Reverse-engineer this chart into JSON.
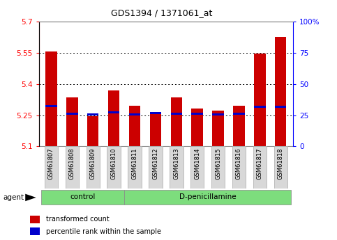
{
  "title": "GDS1394 / 1371061_at",
  "samples": [
    "GSM61807",
    "GSM61808",
    "GSM61809",
    "GSM61810",
    "GSM61811",
    "GSM61812",
    "GSM61813",
    "GSM61814",
    "GSM61815",
    "GSM61816",
    "GSM61817",
    "GSM61818"
  ],
  "transformed_counts": [
    5.555,
    5.335,
    5.245,
    5.37,
    5.295,
    5.262,
    5.335,
    5.282,
    5.272,
    5.295,
    5.545,
    5.625
  ],
  "percentile_ranks": [
    5.293,
    5.258,
    5.253,
    5.263,
    5.253,
    5.26,
    5.256,
    5.256,
    5.255,
    5.256,
    5.292,
    5.292
  ],
  "ylim_left": [
    5.1,
    5.7
  ],
  "ylim_right": [
    0,
    100
  ],
  "yticks_left": [
    5.1,
    5.25,
    5.4,
    5.55,
    5.7
  ],
  "yticks_right": [
    0,
    25,
    50,
    75,
    100
  ],
  "ytick_labels_left": [
    "5.1",
    "5.25",
    "5.4",
    "5.55",
    "5.7"
  ],
  "ytick_labels_right": [
    "0",
    "25",
    "50",
    "75",
    "100%"
  ],
  "bar_color": "#cc0000",
  "percentile_color": "#0000cc",
  "bar_width": 0.55,
  "control_label": "control",
  "dpen_label": "D-penicillamine",
  "agent_label": "agent",
  "legend_bar_label": "transformed count",
  "legend_pct_label": "percentile rank within the sample",
  "background_color": "#ffffff",
  "label_bg_color": "#d8d8d8",
  "group_bg_color": "#7ddd7d"
}
